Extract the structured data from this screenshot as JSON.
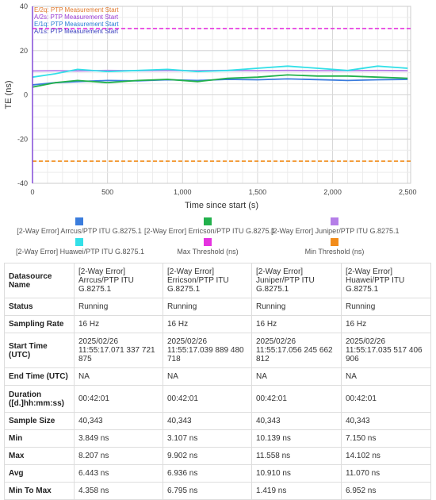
{
  "chart_data": {
    "type": "line",
    "xlabel": "Time since start (s)",
    "ylabel": "TE (ns)",
    "xlim": [
      0,
      2520
    ],
    "ylim": [
      -40,
      40
    ],
    "xticks": [
      "0",
      "500",
      "1,000",
      "1,500",
      "2,000",
      "2,500"
    ],
    "yticks": [
      "40",
      "20",
      "0",
      "-20",
      "-40"
    ],
    "grid": true,
    "legend_position": "bottom",
    "annotations": [
      {
        "text": "E/2q: PTP Measurement Start",
        "color": "#e07a2e"
      },
      {
        "text": "A/2s: PTP Measurement Start",
        "color": "#9c3fd6"
      },
      {
        "text": "E/1q: PTP Measurement Start",
        "color": "#2a7fd4"
      },
      {
        "text": "A/1s: PTP Measurement Start",
        "color": "#3a3fbf"
      }
    ],
    "series": [
      {
        "name": "[2-Way Error] Arrcus/PTP ITU G.8275.1",
        "color": "#3b7ddd",
        "x": [
          0,
          150,
          300,
          500,
          700,
          900,
          1100,
          1300,
          1500,
          1700,
          1900,
          2100,
          2300,
          2500
        ],
        "y": [
          4.5,
          5.5,
          6.0,
          6.5,
          6.3,
          6.8,
          6.5,
          7.0,
          6.8,
          7.2,
          6.9,
          6.5,
          6.8,
          7.0
        ]
      },
      {
        "name": "[2-Way Error] Erricson/PTP ITU G.8275.1",
        "color": "#22b14c",
        "x": [
          0,
          150,
          300,
          500,
          700,
          900,
          1100,
          1300,
          1500,
          1700,
          1900,
          2100,
          2300,
          2500
        ],
        "y": [
          3.5,
          5.5,
          6.5,
          5.5,
          6.5,
          7.0,
          6.0,
          7.5,
          8.0,
          9.0,
          8.5,
          8.5,
          8.0,
          7.5
        ]
      },
      {
        "name": "[2-Way Error] Juniper/PTP ITU G.8275.1",
        "color": "#b57ee8",
        "x": [
          0,
          150,
          300,
          500,
          700,
          900,
          1100,
          1300,
          1500,
          1700,
          1900,
          2100,
          2300,
          2500
        ],
        "y": [
          10.8,
          10.9,
          10.8,
          11.0,
          10.9,
          11.0,
          10.9,
          11.0,
          10.9,
          11.0,
          10.9,
          10.9,
          11.0,
          10.9
        ]
      },
      {
        "name": "[2-Way Error] Huawei/PTP ITU G.8275.1",
        "color": "#33e0e8",
        "x": [
          0,
          150,
          300,
          500,
          700,
          900,
          1100,
          1300,
          1500,
          1700,
          1900,
          2100,
          2300,
          2500
        ],
        "y": [
          8.0,
          9.5,
          11.5,
          10.5,
          11.0,
          11.5,
          10.5,
          11.0,
          12.0,
          13.0,
          12.0,
          11.0,
          13.0,
          12.0
        ]
      },
      {
        "name": "Max Threshold (ns)",
        "color": "#e533e0",
        "dashed": true,
        "x": [
          0,
          2520
        ],
        "y": [
          30,
          30
        ]
      },
      {
        "name": "Min Threshold (ns)",
        "color": "#f28c1a",
        "dashed": true,
        "x": [
          0,
          2520
        ],
        "y": [
          -30,
          -30
        ]
      }
    ]
  },
  "table": {
    "rows": [
      {
        "header": "Datasource Name",
        "cells": [
          "[2-Way Error] Arrcus/PTP ITU G.8275.1",
          "[2-Way Error] Erricson/PTP ITU G.8275.1",
          "[2-Way Error] Juniper/PTP ITU G.8275.1",
          "[2-Way Error] Huawei/PTP ITU G.8275.1"
        ]
      },
      {
        "header": "Status",
        "cells": [
          "Running",
          "Running",
          "Running",
          "Running"
        ]
      },
      {
        "header": "Sampling Rate",
        "cells": [
          "16 Hz",
          "16 Hz",
          "16 Hz",
          "16 Hz"
        ]
      },
      {
        "header": "Start Time (UTC)",
        "cells": [
          "2025/02/26 11:55:17.071 337 721 875",
          "2025/02/26 11:55:17.039 889 480 718",
          "2025/02/26 11:55:17.056 245 662 812",
          "2025/02/26 11:55:17.035 517 406 906"
        ]
      },
      {
        "header": "End Time (UTC)",
        "cells": [
          "NA",
          "NA",
          "NA",
          "NA"
        ]
      },
      {
        "header": "Duration ([d.]hh:mm:ss)",
        "cells": [
          "00:42:01",
          "00:42:01",
          "00:42:01",
          "00:42:01"
        ]
      },
      {
        "header": "Sample Size",
        "cells": [
          "40,343",
          "40,343",
          "40,343",
          "40,343"
        ]
      },
      {
        "header": "Min",
        "cells": [
          "3.849 ns",
          "3.107 ns",
          "10.139 ns",
          "7.150 ns"
        ]
      },
      {
        "header": "Max",
        "cells": [
          "8.207 ns",
          "9.902 ns",
          "11.558 ns",
          "14.102 ns"
        ]
      },
      {
        "header": "Avg",
        "cells": [
          "6.443 ns",
          "6.936 ns",
          "10.910 ns",
          "11.070 ns"
        ]
      },
      {
        "header": "Min To Max",
        "cells": [
          "4.358 ns",
          "6.795 ns",
          "1.419 ns",
          "6.952 ns"
        ]
      }
    ]
  }
}
